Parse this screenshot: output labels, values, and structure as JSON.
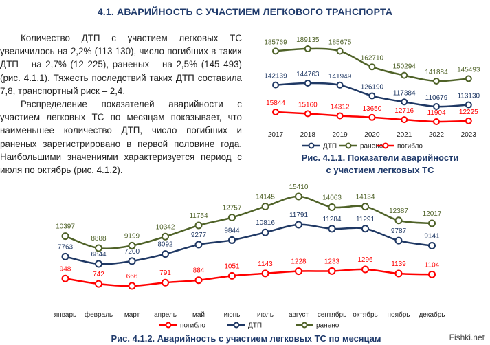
{
  "section_title": "4.1. АВАРИЙНОСТЬ С УЧАСТИЕМ ЛЕГКОВОГО ТРАНСПОРТА",
  "paragraphs": [
    "Количество ДТП с участием легковых ТС увеличилось на 2,2% (113 130), число погибших в таких ДТП – на 2,7% (12 225), раненых – на 2,5% (145 493) (рис. 4.1.1). Тяжесть последствий таких ДТП составила 7,8, транспортный риск – 2,4.",
    "Распределение показателей аварийности с участием легковых ТС по месяцам показывает, что наименьшее количество ДТП, число погибших и раненых зарегистрировано в первой половине года. Наибольшими значениями характеризуется период с июля по октябрь (рис. 4.1.2)."
  ],
  "chart1_caption_line1": "Рис. 4.1.1.  Показатели аварийности",
  "chart1_caption_line2": "с участием легковых ТС",
  "chart2_caption": "Рис. 4.1.2. Аварийность с участием легковых ТС по месяцам",
  "watermark": "Fishki.net",
  "colors": {
    "dtp": "#1f3864",
    "raneno": "#4f6228",
    "pogiblo": "#ff0000",
    "title": "#1f3a6b"
  },
  "chart_data": [
    {
      "type": "line",
      "title": "Рис. 4.1.1.  Показатели аварийности с участием легковых ТС",
      "categories": [
        "2017",
        "2018",
        "2019",
        "2020",
        "2021",
        "2022",
        "2023"
      ],
      "series": [
        {
          "name": "ДТП",
          "values": [
            142139,
            144763,
            141949,
            126190,
            117384,
            110679,
            113130
          ]
        },
        {
          "name": "ранено",
          "values": [
            185769,
            189135,
            185675,
            162710,
            150294,
            141884,
            145493
          ]
        },
        {
          "name": "погибло",
          "values": [
            15844,
            15160,
            14312,
            13650,
            12716,
            11904,
            12225
          ]
        }
      ],
      "legend": [
        "ДТП",
        "ранено",
        "погибло"
      ],
      "legend_position": "bottom"
    },
    {
      "type": "line",
      "title": "Рис. 4.1.2. Аварийность с участием легковых ТС по месяцам",
      "categories": [
        "январь",
        "февраль",
        "март",
        "апрель",
        "май",
        "июнь",
        "июль",
        "август",
        "сентябрь",
        "октябрь",
        "ноябрь",
        "декабрь"
      ],
      "series": [
        {
          "name": "погибло",
          "values": [
            948,
            742,
            666,
            791,
            884,
            1051,
            1143,
            1228,
            1233,
            1296,
            1139,
            1104
          ]
        },
        {
          "name": "ДТП",
          "values": [
            7763,
            6844,
            7200,
            8092,
            9277,
            9844,
            10816,
            11791,
            11284,
            11291,
            9787,
            9141
          ]
        },
        {
          "name": "ранено",
          "values": [
            10397,
            8888,
            9199,
            10342,
            11754,
            12757,
            14145,
            15410,
            14063,
            14134,
            12387,
            12017
          ]
        }
      ],
      "legend": [
        "погибло",
        "ДТП",
        "ранено"
      ],
      "legend_position": "bottom"
    }
  ]
}
